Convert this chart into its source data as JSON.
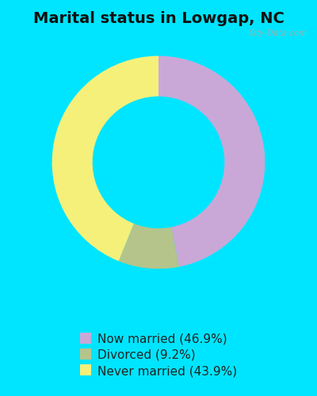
{
  "title": "Marital status in Lowgap, NC",
  "slices": [
    46.9,
    9.2,
    43.9
  ],
  "labels": [
    "Now married (46.9%)",
    "Divorced (9.2%)",
    "Never married (43.9%)"
  ],
  "colors": [
    "#c9a8d8",
    "#b5c48a",
    "#f5f07a"
  ],
  "background_color": "#00e5ff",
  "chart_panel_color": "#d4ecd8",
  "title_fontsize": 14,
  "legend_fontsize": 11,
  "watermark": "City-Data.com",
  "donut_width": 0.38,
  "startangle": 90
}
